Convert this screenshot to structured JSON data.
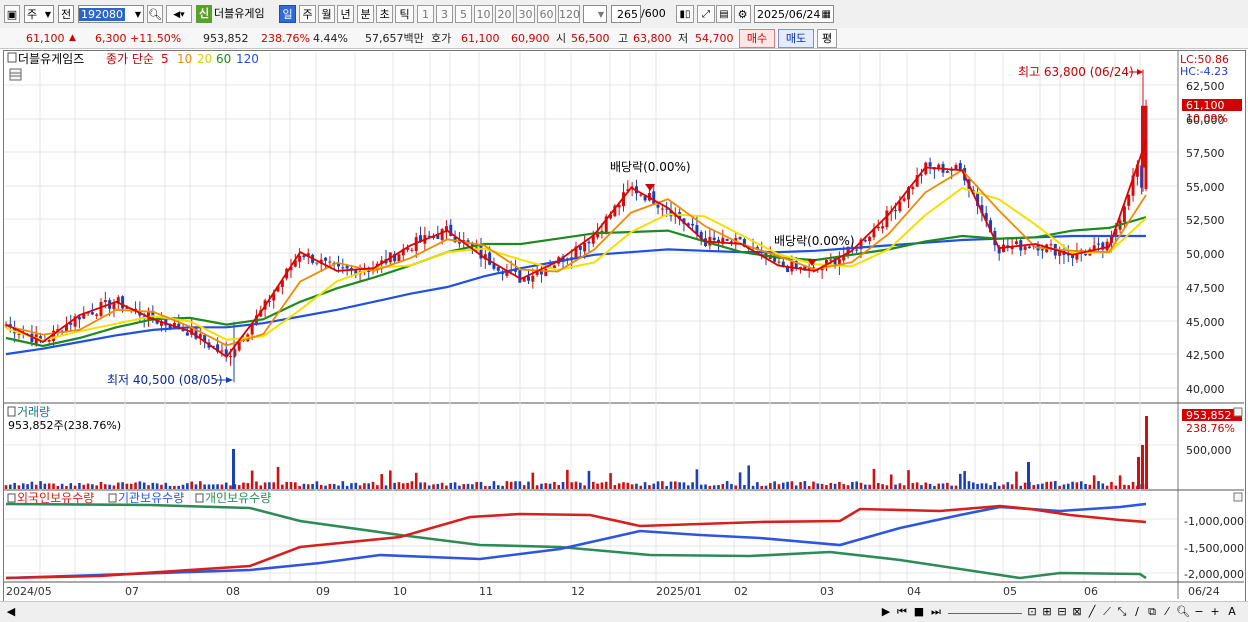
{
  "toolbar": {
    "market": "주",
    "prev_label": "전",
    "code": "192080",
    "name": "더블유게임",
    "name_tag": "신",
    "periods": [
      "일",
      "주",
      "월",
      "년",
      "분",
      "초",
      "틱"
    ],
    "intervals": [
      "1",
      "3",
      "5",
      "10",
      "20",
      "30",
      "60",
      "120"
    ],
    "count": "265",
    "count_total": "/600",
    "date": "2025/06/24"
  },
  "infobar": {
    "price": "61,100",
    "change": "6,300",
    "change_pct": "+11.50%",
    "volume": "953,852",
    "volume_ratio": "238.76%",
    "turnover": "4.44%",
    "amount": "57,657백만",
    "quote_label": "호가",
    "ask": "61,100",
    "bid": "60,900",
    "open_label": "시",
    "open": "56,500",
    "high_label": "고",
    "high": "63,800",
    "low_label": "저",
    "low": "54,700",
    "buy_label": "매수",
    "sell_label": "매도",
    "avg_label": "평"
  },
  "price_pane": {
    "title": "더블유게임즈",
    "ma_label": "종가 단순",
    "ma_periods": [
      "5",
      "10",
      "20",
      "60",
      "120"
    ],
    "lc": "LC:50.86",
    "hc": "HC:-4.23",
    "high_note": "최고 63,800 (06/24)",
    "low_note": "최저 40,500 (08/05)",
    "dividend_note_1": "배당락(0.00%)",
    "dividend_note_2": "배당락(0.00%)",
    "current_tag": "61,100",
    "current_pct": "10.09%",
    "y_labels": [
      "62,500",
      "60,000",
      "57,500",
      "55,000",
      "52,500",
      "50,000",
      "47,500",
      "45,000",
      "42,500",
      "40,000"
    ]
  },
  "volume_pane": {
    "title": "거래량",
    "value": "953,852주(238.76%)",
    "tag": "953,852",
    "tag_pct": "238.76%",
    "y_label": "500,000"
  },
  "holding_pane": {
    "legend": [
      "외국인보유수량",
      "기관보유수량",
      "개인보유수량"
    ],
    "y_labels": [
      "-1,000,000",
      "-1,500,000",
      "-2,000,000"
    ]
  },
  "x_labels": [
    "2024/05",
    "07",
    "08",
    "09",
    "10",
    "11",
    "12",
    "2025/01",
    "02",
    "03",
    "04",
    "05",
    "06",
    "06/24"
  ],
  "colors": {
    "up": "#d01010",
    "down": "#1a3fb8",
    "ma5": "#e00000",
    "ma10": "#f08a00",
    "ma20": "#f3e000",
    "ma60": "#1e8a1e",
    "ma120": "#2050e0",
    "foreign": "#d62020",
    "institution": "#2f55dc",
    "individual": "#2e8b57"
  },
  "chart_data": [
    {
      "type": "line",
      "title": "더블유게임즈",
      "series": [
        {
          "name": "5",
          "values": [
            44800,
            43500,
            45500,
            46500,
            45200,
            44300,
            42400,
            46000,
            50200,
            48800,
            49000,
            50700,
            51800,
            49800,
            48200,
            49500,
            51500,
            55000,
            53500,
            51000,
            50800,
            49200,
            48800,
            50300,
            53000,
            56500,
            56300,
            50500,
            50800,
            50000,
            50600,
            58500
          ]
        },
        {
          "name": "60",
          "values": [
            43800,
            43200,
            43800,
            44600,
            45200,
            45300,
            44800,
            45200,
            46500,
            47500,
            48300,
            49200,
            50200,
            50800,
            50800,
            51200,
            51600,
            51700,
            51800,
            51000,
            50200,
            49800,
            49600,
            50000,
            50400,
            51000,
            51400,
            51200,
            51300,
            51800,
            52000,
            52800
          ]
        },
        {
          "name": "120",
          "values": [
            42600,
            43000,
            43500,
            44000,
            44400,
            44600,
            44600,
            44900,
            45400,
            45900,
            46500,
            47100,
            47600,
            48400,
            49000,
            49500,
            50000,
            50200,
            50400,
            50300,
            50200,
            50200,
            50300,
            50500,
            50700,
            50900,
            51100,
            51200,
            51300,
            51400,
            51400,
            51400
          ]
        }
      ],
      "ylim": [
        40000,
        63800
      ]
    }
  ]
}
